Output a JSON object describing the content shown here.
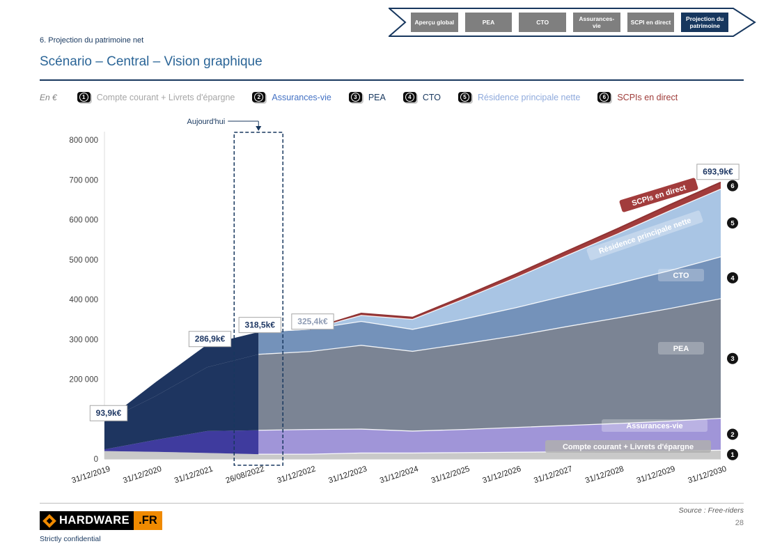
{
  "header": {
    "section": "6. Projection du patrimoine net",
    "title": "Scénario – Central – Vision graphique"
  },
  "nav_tabs": {
    "items": [
      {
        "label": "Aperçu global",
        "active": false
      },
      {
        "label": "PEA",
        "active": false
      },
      {
        "label": "CTO",
        "active": false
      },
      {
        "label": "Assurances-vie",
        "active": false
      },
      {
        "label": "SCPI en direct",
        "active": false
      },
      {
        "label": "Projection du patrimoine",
        "active": true
      }
    ]
  },
  "legend": {
    "unit_label": "En €",
    "items": [
      {
        "num": "1",
        "label": "Compte courant + Livrets d'épargne",
        "color": "#a6a6a6"
      },
      {
        "num": "2",
        "label": "Assurances-vie",
        "color": "#4472c4"
      },
      {
        "num": "3",
        "label": "PEA",
        "color": "#17375e"
      },
      {
        "num": "4",
        "label": "CTO",
        "color": "#17375e"
      },
      {
        "num": "5",
        "label": "Résidence principale nette",
        "color": "#8faadc"
      },
      {
        "num": "6",
        "label": "SCPIs en direct",
        "color": "#9e3b38"
      }
    ]
  },
  "chart_data": {
    "type": "area",
    "stacked": true,
    "title": "Scénario – Central – Vision graphique",
    "unit": "€",
    "x": [
      "31/12/2019",
      "31/12/2020",
      "31/12/2021",
      "26/08/2022",
      "31/12/2022",
      "31/12/2023",
      "31/12/2024",
      "31/12/2025",
      "31/12/2026",
      "31/12/2027",
      "31/12/2028",
      "31/12/2029",
      "31/12/2030"
    ],
    "today_index": 3,
    "today_label": "Aujourd'hui",
    "ylim": [
      0,
      800000
    ],
    "ytick_step": 100000,
    "ytick_labels": [
      "0",
      "",
      "200 000",
      "300 000",
      "400 000",
      "500 000",
      "600 000",
      "700 000",
      "800 000"
    ],
    "legend_position": "top",
    "grid": false,
    "series": [
      {
        "name": "Compte courant + Livrets d'épargne",
        "color": "#c9c9c9",
        "past_color": "#c9c9c9",
        "values": [
          20000,
          18000,
          15000,
          12000,
          12000,
          15000,
          15000,
          16000,
          17000,
          18000,
          19000,
          20000,
          22000
        ]
      },
      {
        "name": "Assurances-vie",
        "color": "#a095d8",
        "past_color": "#3f3b9e",
        "values": [
          4000,
          30000,
          55000,
          60000,
          62000,
          60000,
          55000,
          58000,
          62000,
          66000,
          70000,
          75000,
          80000
        ]
      },
      {
        "name": "PEA",
        "color": "#7b8494",
        "past_color": "#1e3560",
        "values": [
          69900,
          110000,
          160000,
          190500,
          195400,
          210000,
          200000,
          215000,
          230000,
          248000,
          265000,
          282000,
          300000
        ]
      },
      {
        "name": "CTO",
        "color": "#7492ba",
        "past_color": "#1e3560",
        "values": [
          0,
          35000,
          56900,
          56000,
          56000,
          60000,
          55000,
          62000,
          70000,
          78000,
          86000,
          95000,
          104900
        ]
      },
      {
        "name": "Résidence principale nette",
        "color": "#a9c5e4",
        "values": [
          0,
          0,
          0,
          0,
          0,
          15000,
          25000,
          50000,
          75000,
          100000,
          125000,
          150000,
          170000
        ]
      },
      {
        "name": "SCPIs en direct",
        "color": "#a23c3c",
        "values": [
          0,
          0,
          0,
          0,
          0,
          5000,
          5000,
          7000,
          9000,
          11000,
          13000,
          15000,
          17000
        ]
      }
    ],
    "total_labels": [
      {
        "index": 0,
        "text": "93,9k€",
        "color": "#1f3864"
      },
      {
        "index": 2,
        "text": "286,9k€",
        "color": "#1f3864"
      },
      {
        "index": 3,
        "text": "318,5k€",
        "color": "#1f3864"
      },
      {
        "index": 4,
        "text": "325,4k€",
        "color": "#8e9bb3"
      },
      {
        "index": 12,
        "text": "693,9k€",
        "color": "#1f3864"
      }
    ]
  },
  "footer": {
    "source": "Source : Free-riders",
    "page": "28",
    "confidential": "Strictly confidential",
    "logo_text": "HARDWARE",
    "logo_tld": ".FR"
  }
}
